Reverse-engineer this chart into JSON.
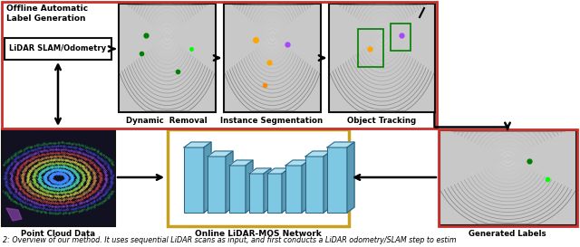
{
  "figure_caption": "2: Overview of our method. It uses sequential LiDAR scans as input, and first conducts a LiDAR odometry/SLAM step to estim",
  "title_offline": "Offline Automatic\nLabel Generation",
  "box_lidar_slam": "LiDAR SLAM/Odometry",
  "label_dynamic": "Dynamic  Removal",
  "label_instance": "Instance Segmentation",
  "label_tracking": "Object Tracking",
  "label_pointcloud": "Point Cloud Data",
  "label_network": "Online LiDAR-MOS Network",
  "label_generated": "Generated Labels",
  "red_box_color": "#c9302c",
  "gold_box_color": "#c8a020",
  "black_box_color": "#111111",
  "background_color": "#ffffff",
  "fig_width": 6.4,
  "fig_height": 2.73,
  "dpi": 100
}
